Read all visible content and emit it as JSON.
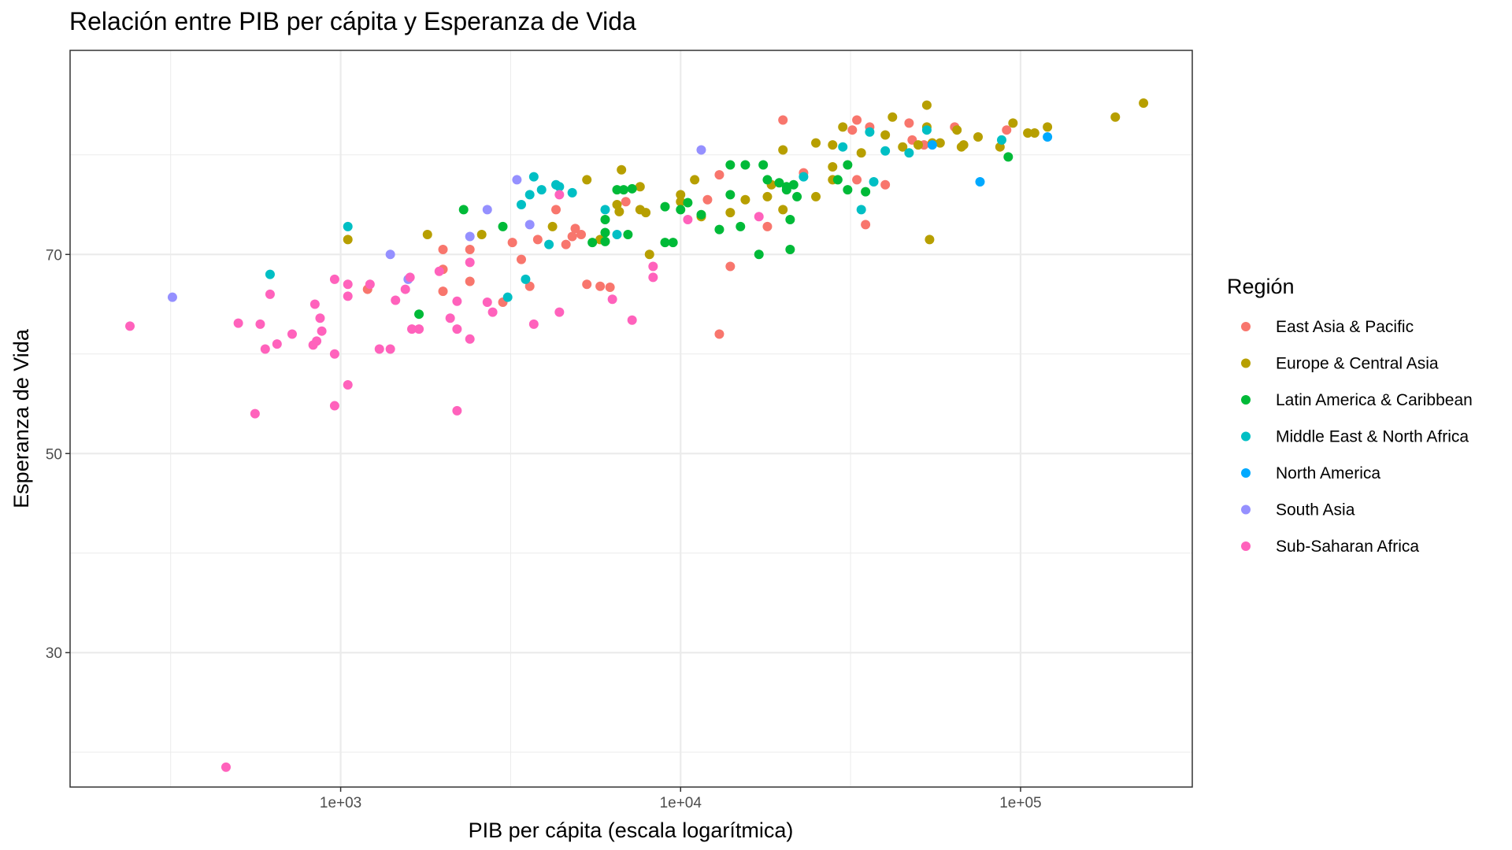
{
  "chart_data": {
    "type": "scatter",
    "title": "Relación entre PIB per cápita y Esperanza de Vida",
    "xlabel": "PIB per cápita (escala logarítmica)",
    "ylabel": "Esperanza de Vida",
    "x_scale": "log10",
    "xlim": [
      160,
      320000
    ],
    "ylim": [
      16.5,
      90.5
    ],
    "x_ticks": [
      {
        "value": 1000,
        "label": "1e+03"
      },
      {
        "value": 10000,
        "label": "1e+04"
      },
      {
        "value": 100000,
        "label": "1e+05"
      }
    ],
    "y_ticks": [
      {
        "value": 30,
        "label": "30"
      },
      {
        "value": 50,
        "label": "50"
      },
      {
        "value": 70,
        "label": "70"
      }
    ],
    "x_minor_ticks": [
      316.2,
      3162.3,
      31622.8
    ],
    "y_minor_ticks": [
      20,
      40,
      60,
      80
    ],
    "grid": true,
    "legend_title": "Región",
    "legend_position": "right",
    "series": [
      {
        "name": "East Asia & Pacific",
        "color": "#F8766D",
        "points": [
          [
            20000,
            83.5
          ],
          [
            33000,
            83.5
          ],
          [
            47000,
            83.2
          ],
          [
            36000,
            82.8
          ],
          [
            91000,
            82.5
          ],
          [
            32000,
            82.5
          ],
          [
            64000,
            82.8
          ],
          [
            48000,
            81.5
          ],
          [
            52000,
            81
          ],
          [
            23000,
            78.2
          ],
          [
            33000,
            77.5
          ],
          [
            13000,
            78
          ],
          [
            40000,
            77
          ],
          [
            12000,
            75.5
          ],
          [
            6900,
            75.3
          ],
          [
            4300,
            74.5
          ],
          [
            18000,
            72.8
          ],
          [
            35000,
            73
          ],
          [
            4900,
            72.6
          ],
          [
            3200,
            71.2
          ],
          [
            3800,
            71.5
          ],
          [
            5100,
            72
          ],
          [
            4800,
            71.8
          ],
          [
            2000,
            70.5
          ],
          [
            2400,
            70.5
          ],
          [
            2000,
            68.5
          ],
          [
            3400,
            69.5
          ],
          [
            4600,
            71
          ],
          [
            14000,
            68.8
          ],
          [
            2400,
            67.3
          ],
          [
            5300,
            67
          ],
          [
            5800,
            66.8
          ],
          [
            6200,
            66.7
          ],
          [
            3600,
            66.8
          ],
          [
            2000,
            66.3
          ],
          [
            1200,
            66.5
          ],
          [
            3000,
            65.2
          ],
          [
            13000,
            62
          ]
        ]
      },
      {
        "name": "Europe & Central Asia",
        "color": "#B79F00",
        "points": [
          [
            230000,
            85.2
          ],
          [
            190000,
            83.8
          ],
          [
            53000,
            85
          ],
          [
            95000,
            83.2
          ],
          [
            42000,
            83.8
          ],
          [
            30000,
            82.8
          ],
          [
            53000,
            82.8
          ],
          [
            65000,
            82.5
          ],
          [
            120000,
            82.8
          ],
          [
            105000,
            82.2
          ],
          [
            110000,
            82.2
          ],
          [
            75000,
            81.8
          ],
          [
            40000,
            82
          ],
          [
            45000,
            80.8
          ],
          [
            50000,
            81
          ],
          [
            55000,
            81.2
          ],
          [
            58000,
            81.2
          ],
          [
            68000,
            81
          ],
          [
            67000,
            80.8
          ],
          [
            87000,
            80.8
          ],
          [
            25000,
            81.2
          ],
          [
            20000,
            80.5
          ],
          [
            28000,
            81
          ],
          [
            34000,
            80.2
          ],
          [
            28000,
            78.8
          ],
          [
            28000,
            77.5
          ],
          [
            6700,
            78.5
          ],
          [
            5300,
            77.5
          ],
          [
            7600,
            76.8
          ],
          [
            10000,
            76
          ],
          [
            10000,
            75.3
          ],
          [
            11000,
            77.5
          ],
          [
            6500,
            75
          ],
          [
            6600,
            74.3
          ],
          [
            7600,
            74.5
          ],
          [
            7900,
            74.2
          ],
          [
            8100,
            70
          ],
          [
            4200,
            72.8
          ],
          [
            2600,
            72
          ],
          [
            1800,
            72
          ],
          [
            1050,
            71.5
          ],
          [
            5800,
            71.5
          ],
          [
            11500,
            73.8
          ],
          [
            14000,
            74.2
          ],
          [
            15500,
            75.5
          ],
          [
            18000,
            75.8
          ],
          [
            18500,
            77
          ],
          [
            20000,
            74.5
          ],
          [
            25000,
            75.8
          ],
          [
            54000,
            71.5
          ]
        ]
      },
      {
        "name": "Latin America & Caribbean",
        "color": "#00BA38",
        "points": [
          [
            14000,
            79
          ],
          [
            15500,
            79
          ],
          [
            17500,
            79
          ],
          [
            18000,
            77.5
          ],
          [
            19500,
            77.2
          ],
          [
            20500,
            76.8
          ],
          [
            21500,
            77
          ],
          [
            20500,
            76.5
          ],
          [
            29000,
            77.5
          ],
          [
            31000,
            76.5
          ],
          [
            35000,
            76.3
          ],
          [
            31000,
            79
          ],
          [
            92000,
            79.8
          ],
          [
            10500,
            75.2
          ],
          [
            11500,
            74
          ],
          [
            13000,
            72.5
          ],
          [
            10000,
            74.5
          ],
          [
            9000,
            74.8
          ],
          [
            9000,
            71.2
          ],
          [
            9500,
            71.2
          ],
          [
            14000,
            76
          ],
          [
            15000,
            72.8
          ],
          [
            21000,
            73.5
          ],
          [
            22000,
            75.8
          ],
          [
            17000,
            70
          ],
          [
            21000,
            70.5
          ],
          [
            6000,
            73.5
          ],
          [
            6500,
            76.5
          ],
          [
            6800,
            76.5
          ],
          [
            7200,
            76.6
          ],
          [
            6000,
            72.2
          ],
          [
            7000,
            72
          ],
          [
            5500,
            71.2
          ],
          [
            6000,
            71.3
          ],
          [
            2300,
            74.5
          ],
          [
            3000,
            72.8
          ],
          [
            1700,
            64
          ]
        ]
      },
      {
        "name": "Middle East & North Africa",
        "color": "#00BFC4",
        "points": [
          [
            30000,
            80.8
          ],
          [
            36000,
            82.3
          ],
          [
            53000,
            82.5
          ],
          [
            88000,
            81.5
          ],
          [
            40000,
            80.4
          ],
          [
            47000,
            80.2
          ],
          [
            37000,
            77.3
          ],
          [
            23000,
            77.8
          ],
          [
            34000,
            74.5
          ],
          [
            3700,
            77.8
          ],
          [
            3900,
            76.5
          ],
          [
            4300,
            77
          ],
          [
            4400,
            76.8
          ],
          [
            3600,
            76
          ],
          [
            3400,
            75
          ],
          [
            4800,
            76.2
          ],
          [
            6000,
            74.5
          ],
          [
            6500,
            72
          ],
          [
            4100,
            71
          ],
          [
            1050,
            72.8
          ],
          [
            620,
            68
          ],
          [
            3100,
            65.7
          ],
          [
            3500,
            67.5
          ]
        ]
      },
      {
        "name": "North America",
        "color": "#00A9FF",
        "points": [
          [
            55000,
            81
          ],
          [
            120000,
            81.8
          ],
          [
            76000,
            77.3
          ]
        ]
      },
      {
        "name": "South Asia",
        "color": "#9590FF",
        "points": [
          [
            11500,
            80.5
          ],
          [
            3300,
            77.5
          ],
          [
            2700,
            74.5
          ],
          [
            3600,
            73
          ],
          [
            2400,
            71.8
          ],
          [
            1400,
            70
          ],
          [
            1580,
            67.5
          ],
          [
            320,
            65.7
          ]
        ]
      },
      {
        "name": "Sub-Saharan Africa",
        "color": "#FF62BC",
        "points": [
          [
            4400,
            76
          ],
          [
            10500,
            73.5
          ],
          [
            17000,
            73.8
          ],
          [
            8300,
            68.8
          ],
          [
            8300,
            67.7
          ],
          [
            2400,
            69.2
          ],
          [
            1950,
            68.3
          ],
          [
            1050,
            67
          ],
          [
            960,
            67.5
          ],
          [
            1600,
            67.7
          ],
          [
            1550,
            66.5
          ],
          [
            1220,
            67
          ],
          [
            620,
            66
          ],
          [
            1050,
            65.8
          ],
          [
            1450,
            65.4
          ],
          [
            2200,
            65.3
          ],
          [
            2700,
            65.2
          ],
          [
            2800,
            64.2
          ],
          [
            4400,
            64.2
          ],
          [
            6300,
            65.5
          ],
          [
            7200,
            63.4
          ],
          [
            3700,
            63
          ],
          [
            2100,
            63.6
          ],
          [
            2200,
            62.5
          ],
          [
            2400,
            61.5
          ],
          [
            1620,
            62.5
          ],
          [
            1700,
            62.5
          ],
          [
            840,
            65
          ],
          [
            870,
            63.6
          ],
          [
            880,
            62.3
          ],
          [
            720,
            62
          ],
          [
            580,
            63
          ],
          [
            500,
            63.1
          ],
          [
            650,
            61
          ],
          [
            600,
            60.5
          ],
          [
            830,
            60.9
          ],
          [
            850,
            61.3
          ],
          [
            960,
            60
          ],
          [
            1300,
            60.5
          ],
          [
            1400,
            60.5
          ],
          [
            1050,
            56.9
          ],
          [
            960,
            54.8
          ],
          [
            2200,
            54.3
          ],
          [
            560,
            54
          ],
          [
            240,
            62.8
          ],
          [
            460,
            18.5
          ]
        ]
      }
    ]
  }
}
